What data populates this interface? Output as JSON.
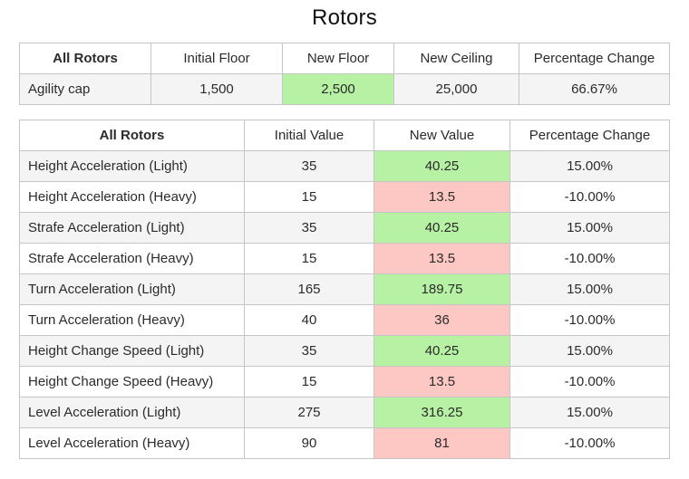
{
  "page": {
    "title": "Rotors"
  },
  "colors": {
    "positive_bg": "#b7f2a4",
    "negative_bg": "#fdc8c4",
    "stripe_bg": "#f4f4f4",
    "border": "#c5c5c5"
  },
  "cap_table": {
    "headers": [
      "All Rotors",
      "Initial Floor",
      "New Floor",
      "New Ceiling",
      "Percentage Change"
    ],
    "row": {
      "label": "Agility cap",
      "initial_floor": "1,500",
      "new_floor": "2,500",
      "new_floor_highlight": "positive",
      "new_ceiling": "25,000",
      "percentage_change": "66.67%"
    }
  },
  "values_table": {
    "headers": [
      "All Rotors",
      "Initial Value",
      "New Value",
      "Percentage Change"
    ],
    "rows": [
      {
        "label": "Height Acceleration (Light)",
        "initial": "35",
        "new": "40.25",
        "change": "15.00%",
        "highlight": "positive"
      },
      {
        "label": "Height Acceleration (Heavy)",
        "initial": "15",
        "new": "13.5",
        "change": "-10.00%",
        "highlight": "negative"
      },
      {
        "label": "Strafe Acceleration (Light)",
        "initial": "35",
        "new": "40.25",
        "change": "15.00%",
        "highlight": "positive"
      },
      {
        "label": "Strafe Acceleration (Heavy)",
        "initial": "15",
        "new": "13.5",
        "change": "-10.00%",
        "highlight": "negative"
      },
      {
        "label": "Turn Acceleration (Light)",
        "initial": "165",
        "new": "189.75",
        "change": "15.00%",
        "highlight": "positive"
      },
      {
        "label": "Turn Acceleration (Heavy)",
        "initial": "40",
        "new": "36",
        "change": "-10.00%",
        "highlight": "negative"
      },
      {
        "label": "Height Change Speed (Light)",
        "initial": "35",
        "new": "40.25",
        "change": "15.00%",
        "highlight": "positive"
      },
      {
        "label": "Height Change Speed (Heavy)",
        "initial": "15",
        "new": "13.5",
        "change": "-10.00%",
        "highlight": "negative"
      },
      {
        "label": "Level Acceleration (Light)",
        "initial": "275",
        "new": "316.25",
        "change": "15.00%",
        "highlight": "positive"
      },
      {
        "label": "Level Acceleration (Heavy)",
        "initial": "90",
        "new": "81",
        "change": "-10.00%",
        "highlight": "negative"
      }
    ]
  }
}
